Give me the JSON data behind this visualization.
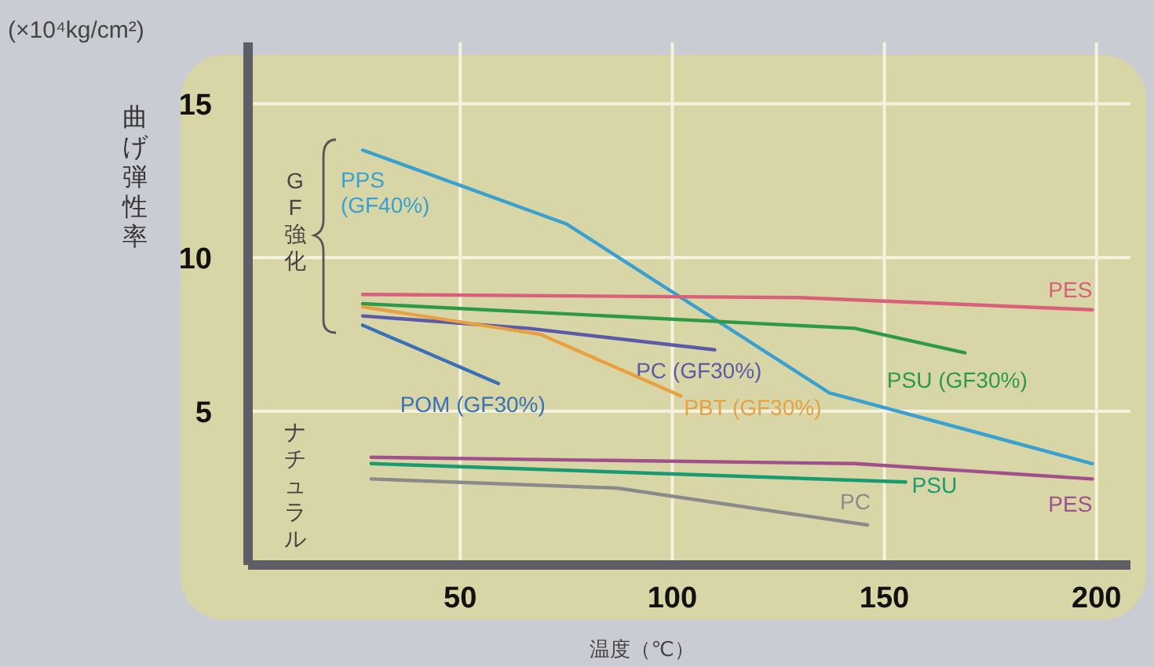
{
  "chart_data": {
    "type": "line",
    "xlabel": "温度（℃）",
    "ylabel": "曲げ弾性率",
    "annotations": [
      "(×10⁴kg/cm²)",
      "GF強化",
      "ナチュラル"
    ],
    "xlim": [
      0,
      208
    ],
    "ylim": [
      0,
      17
    ],
    "xticks": [
      50,
      100,
      150,
      200
    ],
    "yticks": [
      5,
      10,
      15
    ],
    "grid": true,
    "legend": false,
    "series": [
      {
        "name": "PPS\n(GF40%)",
        "color": "#3aa0d0",
        "x": [
          27,
          75,
          137,
          199
        ],
        "values": [
          13.5,
          11.1,
          5.6,
          3.3
        ]
      },
      {
        "name": "PES",
        "color": "#d9607a",
        "x": [
          27,
          130,
          199
        ],
        "values": [
          8.8,
          8.7,
          8.3
        ]
      },
      {
        "name": "PSU (GF30%)",
        "color": "#2e9a48",
        "x": [
          27,
          143,
          169
        ],
        "values": [
          8.5,
          7.7,
          6.9
        ]
      },
      {
        "name": "PC (GF30%)",
        "color": "#5a5aa8",
        "x": [
          27,
          66,
          110
        ],
        "values": [
          8.1,
          7.7,
          7.0
        ]
      },
      {
        "name": "PBT (GF30%)",
        "color": "#e8a040",
        "x": [
          27,
          69,
          102
        ],
        "values": [
          8.4,
          7.5,
          5.5
        ]
      },
      {
        "name": "POM (GF30%)",
        "color": "#3a70b8",
        "x": [
          27,
          59
        ],
        "values": [
          7.8,
          5.9
        ]
      },
      {
        "name": "PES",
        "color": "#a0508a",
        "x": [
          29,
          143,
          199
        ],
        "values": [
          3.5,
          3.3,
          2.8
        ]
      },
      {
        "name": "PSU",
        "color": "#1a9a70",
        "x": [
          29,
          155
        ],
        "values": [
          3.3,
          2.7
        ]
      },
      {
        "name": "PC",
        "color": "#8a8a8a",
        "x": [
          29,
          87,
          146
        ],
        "values": [
          2.8,
          2.5,
          1.3
        ]
      }
    ]
  }
}
